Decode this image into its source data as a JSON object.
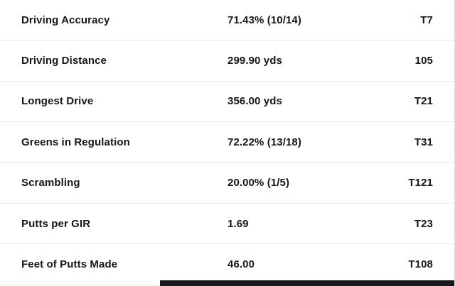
{
  "stats_table": {
    "rows": [
      {
        "label": "Driving Accuracy",
        "value": "71.43% (10/14)",
        "rank": "T7"
      },
      {
        "label": "Driving Distance",
        "value": "299.90 yds",
        "rank": "105"
      },
      {
        "label": "Longest Drive",
        "value": "356.00 yds",
        "rank": "T21"
      },
      {
        "label": "Greens in Regulation",
        "value": "72.22% (13/18)",
        "rank": "T31"
      },
      {
        "label": "Scrambling",
        "value": "20.00% (1/5)",
        "rank": "T121"
      },
      {
        "label": "Putts per GIR",
        "value": "1.69",
        "rank": "T23"
      },
      {
        "label": "Feet of Putts Made",
        "value": "46.00",
        "rank": "T108"
      }
    ]
  },
  "colors": {
    "background": "#ffffff",
    "text": "#15171c",
    "divider": "#e7e7e7",
    "bottom_bar": "#17181b"
  }
}
